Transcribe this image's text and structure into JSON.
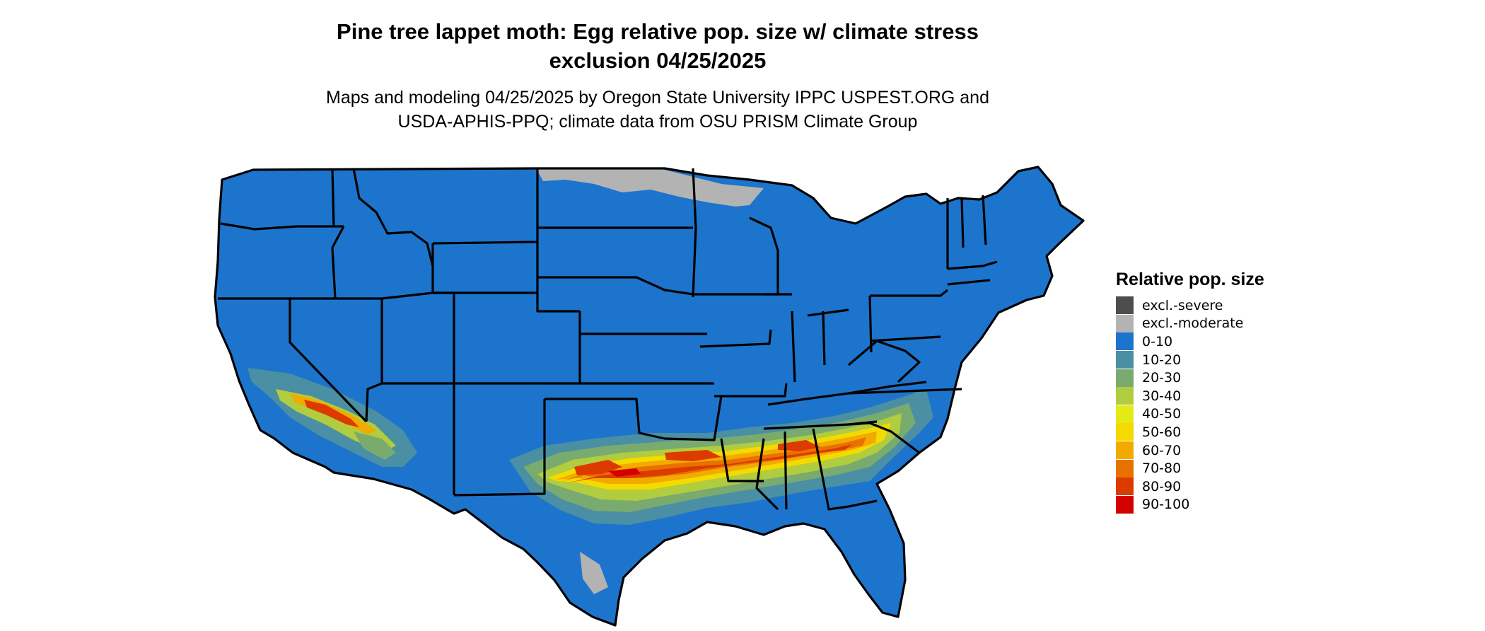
{
  "title_line1": "Pine tree lappet moth: Egg relative pop. size w/ climate stress",
  "title_line2": "exclusion 04/25/2025",
  "subtitle_line1": "Maps and modeling 04/25/2025 by Oregon State University IPPC USPEST.ORG and",
  "subtitle_line2": "USDA-APHIS-PPQ; climate data from OSU PRISM Climate Group",
  "legend": {
    "title": "Relative pop. size",
    "items": [
      {
        "label": "excl.-severe",
        "color": "#4d4d4d"
      },
      {
        "label": "excl.-moderate",
        "color": "#b3b3b3"
      },
      {
        "label": "0-10",
        "color": "#1d74cc"
      },
      {
        "label": "10-20",
        "color": "#4a8fa3"
      },
      {
        "label": "20-30",
        "color": "#7aab6e"
      },
      {
        "label": "30-40",
        "color": "#b2cc3f"
      },
      {
        "label": "40-50",
        "color": "#e4ea18"
      },
      {
        "label": "50-60",
        "color": "#f5da00"
      },
      {
        "label": "60-70",
        "color": "#f2aa00"
      },
      {
        "label": "70-80",
        "color": "#e97100"
      },
      {
        "label": "80-90",
        "color": "#dd3a00"
      },
      {
        "label": "90-100",
        "color": "#d40000"
      }
    ]
  }
}
